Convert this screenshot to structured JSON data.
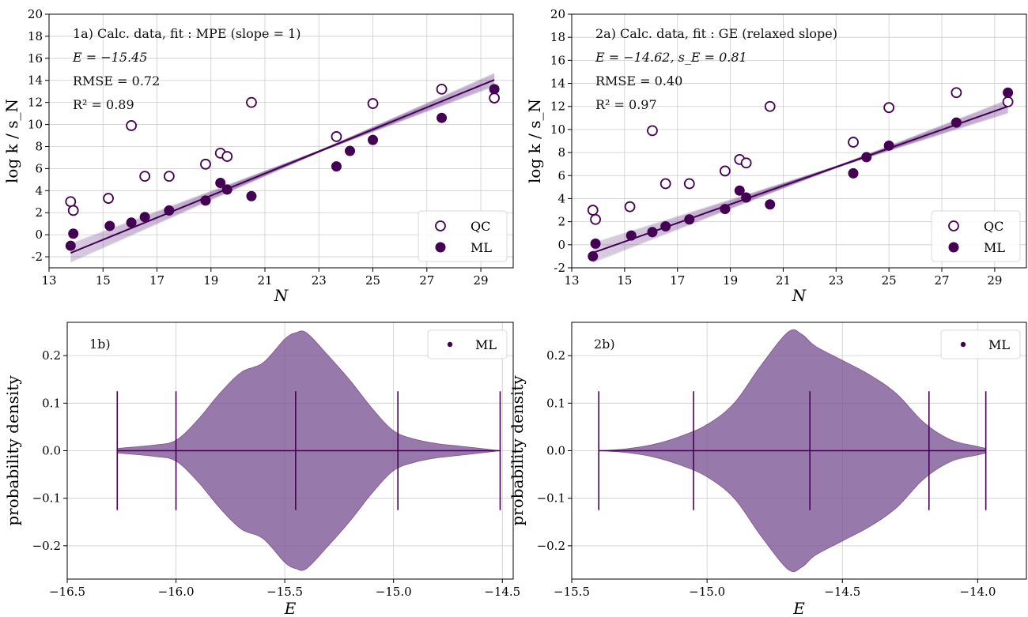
{
  "colors": {
    "dark": "#440154",
    "fill": "#7b5394",
    "grid": "#cccccc"
  },
  "chart_data": [
    {
      "id": "1a",
      "type": "scatter",
      "annotations": [
        "1a) Calc. data, fit : MPE (slope = 1)",
        "E = −15.45",
        "RMSE = 0.72",
        "R² = 0.89"
      ],
      "xlabel": "N",
      "ylabel": "log k / s_N",
      "xlim": [
        13,
        30.2
      ],
      "ylim": [
        -3,
        20
      ],
      "xticks": [
        13,
        15,
        17,
        19,
        21,
        23,
        25,
        27,
        29
      ],
      "yticks": [
        -2,
        0,
        2,
        4,
        6,
        8,
        10,
        12,
        14,
        16,
        18,
        20
      ],
      "legend": [
        "QC",
        "ML"
      ],
      "legend_position": "lower right",
      "series": [
        {
          "name": "QC",
          "marker": "open-circle",
          "x": [
            13.8,
            13.9,
            15.2,
            16.05,
            16.55,
            17.45,
            18.8,
            19.35,
            19.6,
            20.5,
            23.65,
            25.0,
            27.55,
            29.5
          ],
          "y": [
            3.0,
            2.2,
            3.3,
            9.9,
            5.3,
            5.3,
            6.4,
            7.4,
            7.1,
            12.0,
            8.9,
            11.9,
            13.2,
            12.4
          ]
        },
        {
          "name": "ML",
          "marker": "filled-circle",
          "x": [
            13.8,
            13.9,
            15.25,
            16.05,
            16.55,
            17.45,
            18.8,
            19.35,
            19.6,
            20.5,
            23.65,
            24.15,
            25.0,
            27.55,
            29.5
          ],
          "y": [
            -1.0,
            0.1,
            0.8,
            1.1,
            1.6,
            2.2,
            3.1,
            4.7,
            4.1,
            3.5,
            6.2,
            7.6,
            8.6,
            10.6,
            13.2
          ]
        }
      ],
      "fit_line": {
        "x": [
          13.8,
          29.5
        ],
        "y": [
          -1.65,
          14.05
        ]
      }
    },
    {
      "id": "2a",
      "type": "scatter",
      "annotations": [
        "2a) Calc. data, fit : GE (relaxed slope)",
        "E = −14.62, s_E = 0.81",
        "RMSE = 0.40",
        "R² = 0.97"
      ],
      "xlabel": "N",
      "ylabel": "log k / s_N",
      "xlim": [
        13,
        30.2
      ],
      "ylim": [
        -2,
        20
      ],
      "xticks": [
        13,
        15,
        17,
        19,
        21,
        23,
        25,
        27,
        29
      ],
      "yticks": [
        -2,
        0,
        2,
        4,
        6,
        8,
        10,
        12,
        14,
        16,
        18,
        20
      ],
      "legend": [
        "QC",
        "ML"
      ],
      "legend_position": "lower right",
      "series": [
        {
          "name": "QC",
          "marker": "open-circle",
          "x": [
            13.8,
            13.9,
            15.2,
            16.05,
            16.55,
            17.45,
            18.8,
            19.35,
            19.6,
            20.5,
            23.65,
            25.0,
            27.55,
            29.5
          ],
          "y": [
            3.0,
            2.2,
            3.3,
            9.9,
            5.3,
            5.3,
            6.4,
            7.4,
            7.1,
            12.0,
            8.9,
            11.9,
            13.2,
            12.4
          ]
        },
        {
          "name": "ML",
          "marker": "filled-circle",
          "x": [
            13.8,
            13.9,
            15.25,
            16.05,
            16.55,
            17.45,
            18.8,
            19.35,
            19.6,
            20.5,
            23.65,
            24.15,
            25.0,
            27.55,
            29.5
          ],
          "y": [
            -1.0,
            0.1,
            0.8,
            1.1,
            1.6,
            2.2,
            3.1,
            4.7,
            4.1,
            3.5,
            6.2,
            7.6,
            8.6,
            10.6,
            13.2
          ]
        }
      ],
      "fit_line": {
        "x": [
          13.8,
          29.5
        ],
        "y": [
          -0.7,
          12.0
        ]
      }
    },
    {
      "id": "1b",
      "type": "area",
      "subtype": "violin",
      "annotations": [
        "1b)"
      ],
      "xlabel": "E",
      "ylabel": "probability density",
      "xlim": [
        -16.5,
        -14.45
      ],
      "ylim": [
        -0.27,
        0.27
      ],
      "xticks": [
        -16.5,
        -16.0,
        -15.5,
        -15.0,
        -14.5
      ],
      "xtick_labels": [
        "−16.5",
        "−16.0",
        "−15.5",
        "−15.0",
        "−14.5"
      ],
      "yticks": [
        -0.2,
        -0.1,
        0.0,
        0.1,
        0.2
      ],
      "ytick_labels": [
        "−0.2",
        "−0.1",
        "0.0",
        "0.1",
        "0.2"
      ],
      "legend": [
        "ML"
      ],
      "legend_position": "upper right",
      "density": {
        "x": [
          -16.27,
          -16.1,
          -16.0,
          -15.9,
          -15.8,
          -15.7,
          -15.6,
          -15.5,
          -15.45,
          -15.4,
          -15.3,
          -15.2,
          -15.1,
          -15.0,
          -14.9,
          -14.8,
          -14.7,
          -14.6,
          -14.51
        ],
        "y": [
          0.005,
          0.012,
          0.022,
          0.065,
          0.12,
          0.165,
          0.185,
          0.235,
          0.248,
          0.248,
          0.2,
          0.148,
          0.09,
          0.042,
          0.024,
          0.015,
          0.01,
          0.005,
          0.0
        ]
      },
      "vlines": [
        -16.27,
        -16.0,
        -15.45,
        -14.98,
        -14.51
      ],
      "vline_height": 0.125
    },
    {
      "id": "2b",
      "type": "area",
      "subtype": "violin",
      "annotations": [
        "2b)"
      ],
      "xlabel": "E",
      "ylabel": "probability density",
      "xlim": [
        -15.5,
        -13.82
      ],
      "ylim": [
        -0.27,
        0.27
      ],
      "xticks": [
        -15.5,
        -15.0,
        -14.5,
        -14.0
      ],
      "xtick_labels": [
        "−15.5",
        "−15.0",
        "−14.5",
        "−14.0"
      ],
      "yticks": [
        -0.2,
        -0.1,
        0.0,
        0.1,
        0.2
      ],
      "ytick_labels": [
        "−0.2",
        "−0.1",
        "0.0",
        "0.1",
        "0.2"
      ],
      "legend": [
        "ML"
      ],
      "legend_position": "upper right",
      "density": {
        "x": [
          -15.4,
          -15.3,
          -15.2,
          -15.1,
          -15.0,
          -14.9,
          -14.8,
          -14.7,
          -14.65,
          -14.6,
          -14.5,
          -14.4,
          -14.3,
          -14.2,
          -14.1,
          -14.0,
          -13.97
        ],
        "y": [
          0.0,
          0.004,
          0.013,
          0.03,
          0.055,
          0.1,
          0.18,
          0.25,
          0.245,
          0.22,
          0.19,
          0.16,
          0.12,
          0.06,
          0.023,
          0.009,
          0.005
        ]
      },
      "vlines": [
        -15.4,
        -15.05,
        -14.62,
        -14.18,
        -13.97
      ],
      "vline_height": 0.125
    }
  ]
}
